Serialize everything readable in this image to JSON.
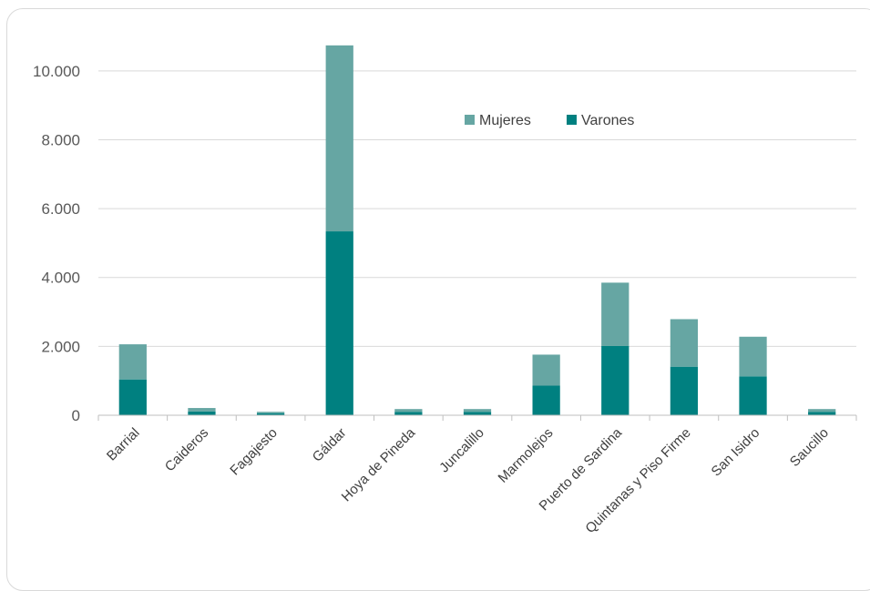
{
  "chart_data": {
    "type": "bar",
    "stacked": true,
    "categories": [
      "Barrial",
      "Caideros",
      "Fagajesto",
      "Gáldar",
      "Hoya de Pineda",
      "Juncalillo",
      "Marmolejos",
      "Puerto de Sardina",
      "Quintanas y Piso Firme",
      "San Isidro",
      "Saucillo"
    ],
    "series": [
      {
        "name": "Varones",
        "color": "#008080",
        "values": [
          1040,
          110,
          60,
          5340,
          100,
          100,
          860,
          2010,
          1410,
          1130,
          100
        ]
      },
      {
        "name": "Mujeres",
        "color": "#66a6a3",
        "values": [
          1020,
          100,
          40,
          5400,
          80,
          80,
          900,
          1840,
          1380,
          1150,
          80
        ]
      }
    ],
    "legend_order": [
      "Mujeres",
      "Varones"
    ],
    "y_ticks": [
      "0",
      "2.000",
      "4.000",
      "6.000",
      "8.000",
      "10.000"
    ],
    "y_tick_values": [
      0,
      2000,
      4000,
      6000,
      8000,
      10000
    ],
    "ylim": [
      0,
      11000
    ],
    "grid": true,
    "legend_position": "top-center",
    "title": "",
    "xlabel": "",
    "ylabel": ""
  }
}
